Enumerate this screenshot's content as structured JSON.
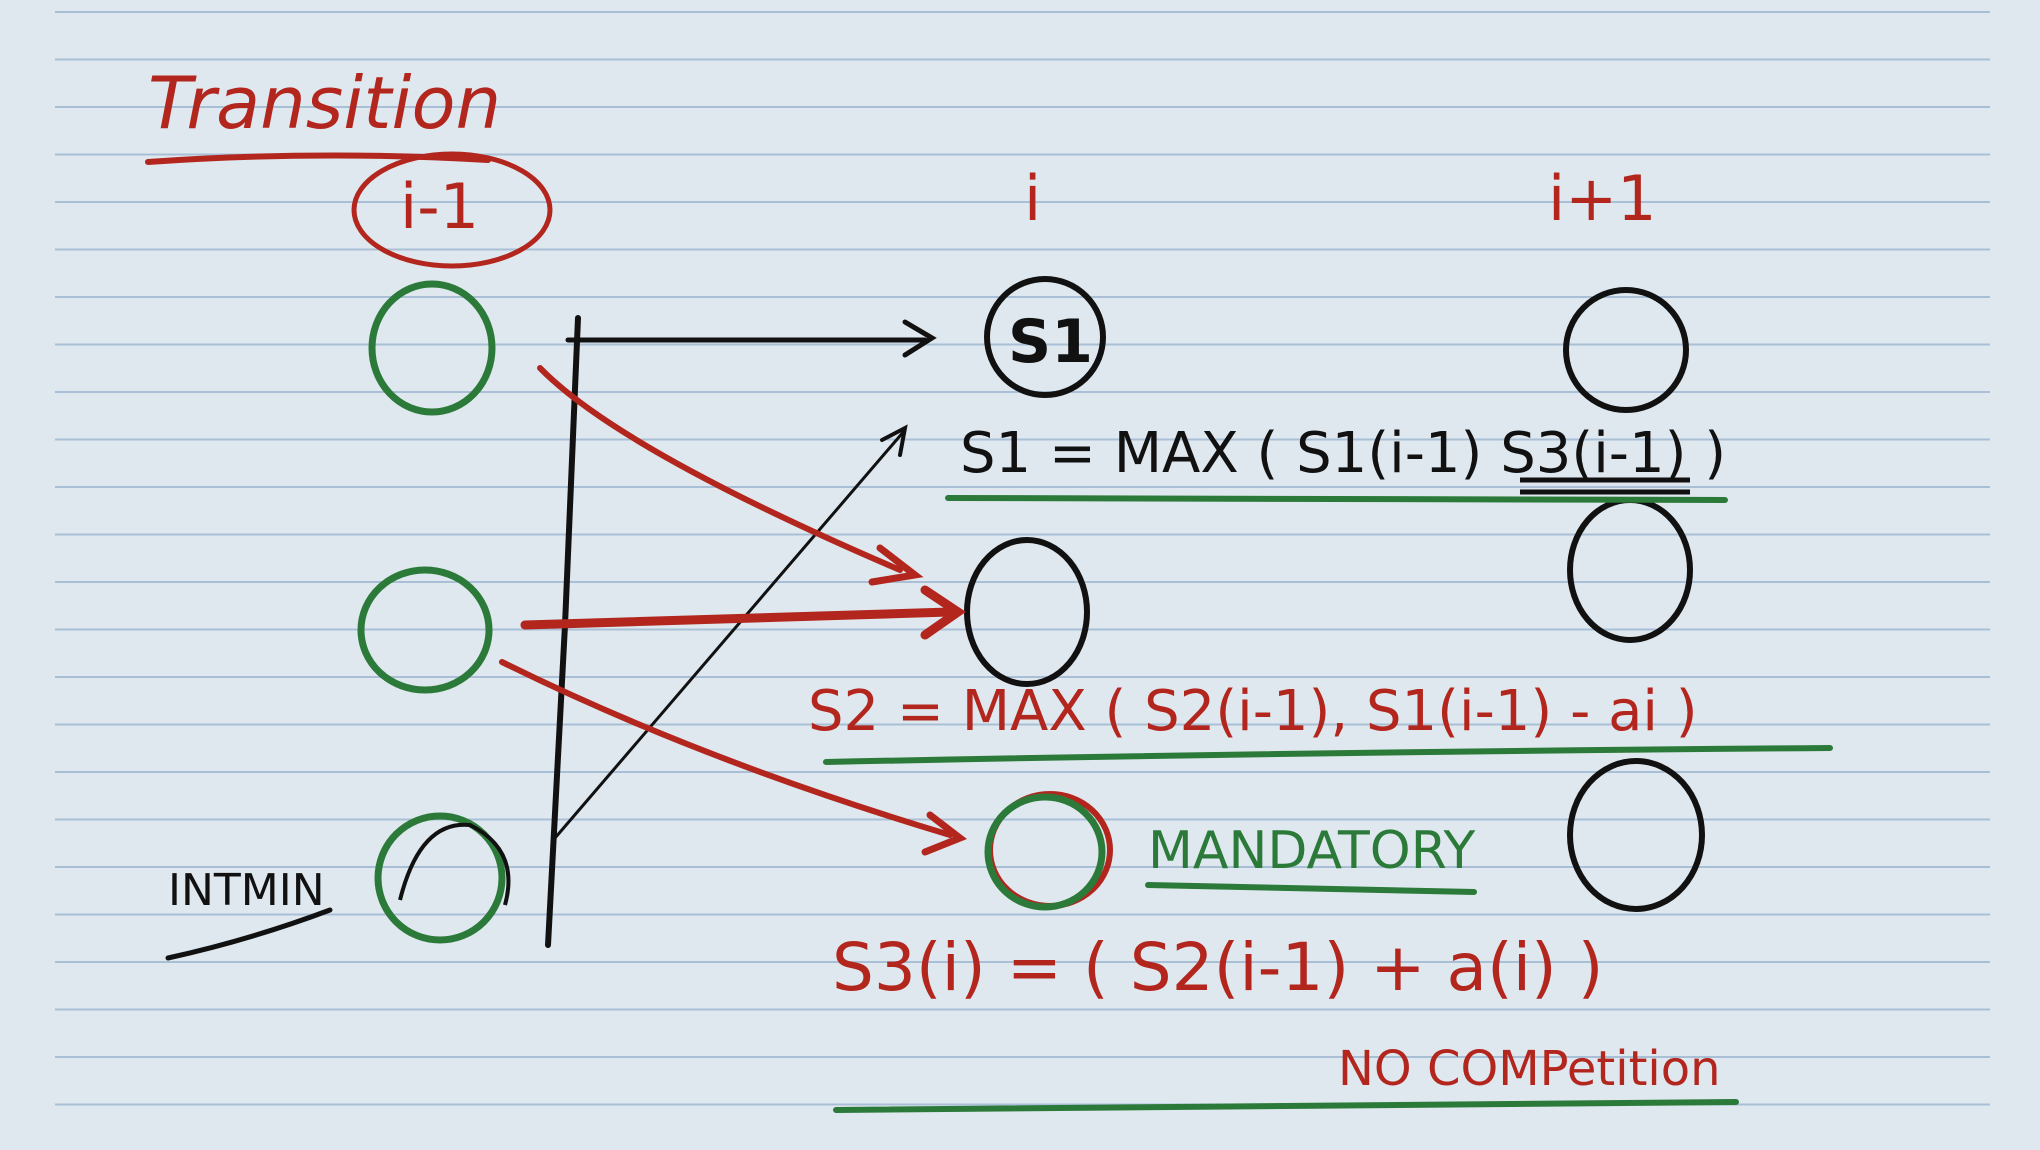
{
  "title": "Transition",
  "columns": {
    "prev": "i-1",
    "cur": "i",
    "next": "i+1"
  },
  "labels": {
    "intmin": "INTMIN",
    "s1_node": "S1",
    "mandatory": "MANDATORY",
    "no_competition": "NO COMPetition"
  },
  "equations": {
    "s1": "S1 = MAX ( S1(i-1) S3(i-1) )",
    "s2": "S2 = MAX ( S2(i-1), S1(i-1) - ai )",
    "s3": "S3(i) = ( S2(i-1) + a(i) )"
  },
  "colors": {
    "paper": "#dfe8ee",
    "rule_line": "#a9bfd6",
    "ink_red": "#b3261e",
    "ink_black": "#111111",
    "ink_green": "#2c7a3a"
  }
}
